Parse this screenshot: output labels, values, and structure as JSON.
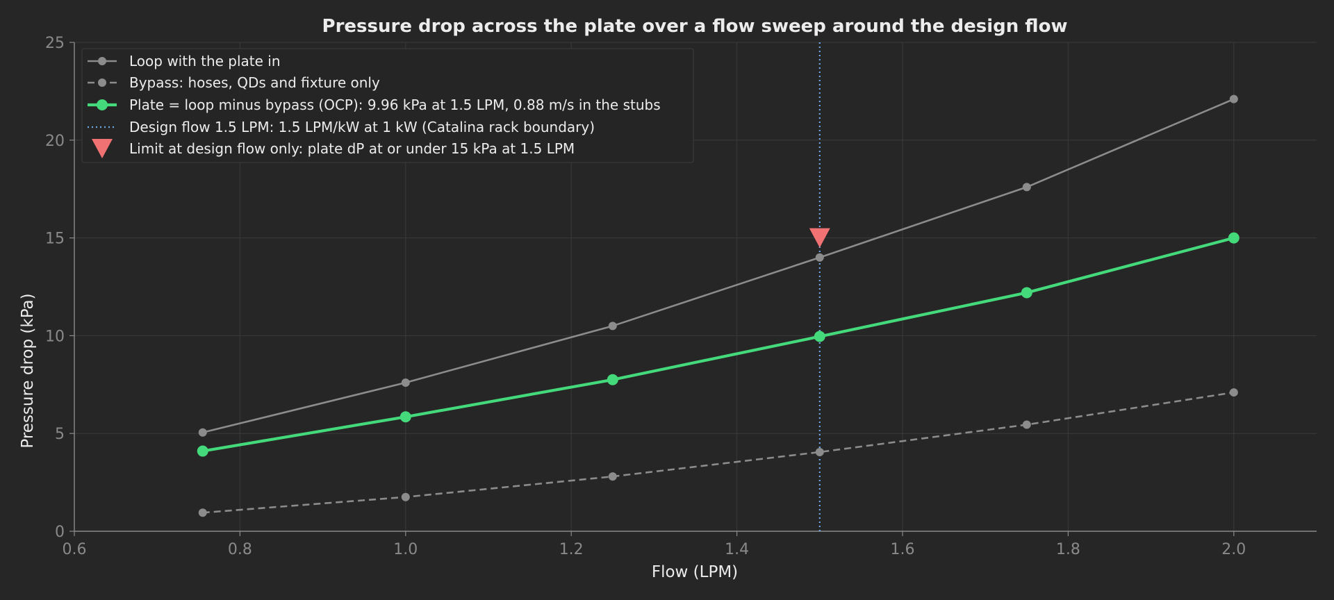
{
  "chart_data": {
    "type": "line",
    "title": "Pressure drop across the plate over a flow sweep around the design flow",
    "xlabel": "Flow (LPM)",
    "ylabel": "Pressure drop (kPa)",
    "xlim": [
      0.6,
      2.1
    ],
    "ylim": [
      0,
      25
    ],
    "xticks": [
      "0.6",
      "0.8",
      "1.0",
      "1.2",
      "1.4",
      "1.6",
      "1.8",
      "2.0"
    ],
    "yticks": [
      "0",
      "5",
      "10",
      "15",
      "20",
      "25"
    ],
    "x": [
      0.755,
      1.0,
      1.25,
      1.5,
      1.75,
      2.0
    ],
    "series": [
      {
        "name": "Loop with the plate in",
        "values": [
          5.05,
          7.6,
          10.5,
          14.0,
          17.6,
          22.1
        ],
        "color": "#8c8c8c",
        "style": "solid"
      },
      {
        "name": "Bypass: hoses, QDs and fixture only",
        "values": [
          0.95,
          1.75,
          2.8,
          4.05,
          5.45,
          7.1
        ],
        "color": "#8c8c8c",
        "style": "dashed"
      },
      {
        "name": "Plate = loop minus bypass (OCP): 9.96 kPa at 1.5 LPM, 0.88 m/s in the stubs",
        "values": [
          4.1,
          5.85,
          7.75,
          9.96,
          12.2,
          15.0
        ],
        "color": "#44d97a",
        "style": "solid"
      }
    ],
    "design_line": {
      "label": "Design flow 1.5 LPM: 1.5 LPM/kW at 1 kW (Catalina rack boundary)",
      "x": 1.5,
      "color": "#6fa8e8"
    },
    "limit_marker": {
      "label": "Limit at design flow only: plate dP at or under 15 kPa at 1.5 LPM",
      "x": 1.5,
      "y": 15,
      "color": "#f07272"
    },
    "grid": true,
    "legend_position": "top-left"
  }
}
